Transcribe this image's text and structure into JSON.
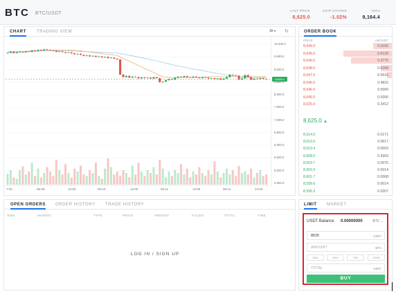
{
  "header": {
    "symbol": "BTC",
    "pair": "BTC/USDT",
    "stats": [
      {
        "label": "LAST PRICE",
        "value": "8,625.0",
        "color": "#e0554b"
      },
      {
        "label": "24HR CHANGE",
        "value": "-1.02%",
        "color": "#e0554b"
      },
      {
        "label": "HIGH",
        "value": "9,164.4",
        "color": "#1d2230"
      }
    ]
  },
  "chart_panel": {
    "tabs": [
      {
        "label": "CHART"
      },
      {
        "label": "TRADING VIEW"
      }
    ],
    "interval": "1h",
    "interval_icon": "chevron-down-icon",
    "refresh_icon": "refresh-icon"
  },
  "chart_data": {
    "type": "candlestick",
    "y_ticks": [
      "10,000.0",
      "9,500.0",
      "9,000.0",
      "8,500.0",
      "8,000.0",
      "7,500.0",
      "7,000.0",
      "6,500.0",
      "6,000.0",
      "5,500.0",
      "5,000.0",
      "4,500.0"
    ],
    "x_ticks": [
      "7:00",
      "06-09",
      "12:00",
      "06-10",
      "12:00",
      "06-11",
      "12:00",
      "06-12",
      "12:00"
    ],
    "last_price_tag": "8,625.0",
    "ylim": [
      4500,
      10000
    ],
    "candles": [
      [
        9640,
        9660
      ],
      [
        9660,
        9700
      ],
      [
        9700,
        9650
      ],
      [
        9650,
        9680
      ],
      [
        9680,
        9700
      ],
      [
        9700,
        9680
      ],
      [
        9680,
        9720
      ],
      [
        9720,
        9700
      ],
      [
        9700,
        9760
      ],
      [
        9760,
        9740
      ],
      [
        9740,
        9780
      ],
      [
        9780,
        9760
      ],
      [
        9760,
        9800
      ],
      [
        9800,
        9780
      ],
      [
        9780,
        9760
      ],
      [
        9760,
        9740
      ],
      [
        9740,
        9700
      ],
      [
        9700,
        9720
      ],
      [
        9720,
        9690
      ],
      [
        9690,
        9660
      ],
      [
        9660,
        9680
      ],
      [
        9680,
        9640
      ],
      [
        9640,
        9600
      ],
      [
        9600,
        9620
      ],
      [
        9620,
        9580
      ],
      [
        9580,
        9540
      ],
      [
        9540,
        9560
      ],
      [
        9560,
        9520
      ],
      [
        9520,
        9540
      ],
      [
        9540,
        9500
      ],
      [
        9500,
        9520
      ],
      [
        9520,
        9480
      ],
      [
        9480,
        9500
      ],
      [
        9500,
        9450
      ],
      [
        9450,
        9470
      ],
      [
        9470,
        9430
      ],
      [
        9430,
        9400
      ],
      [
        9400,
        8800
      ],
      [
        8800,
        8700
      ],
      [
        8700,
        8750
      ],
      [
        8750,
        8680
      ],
      [
        8680,
        8720
      ],
      [
        8720,
        8700
      ],
      [
        8700,
        8650
      ],
      [
        8650,
        8690
      ],
      [
        8690,
        8660
      ],
      [
        8660,
        8680
      ],
      [
        8680,
        8640
      ],
      [
        8640,
        8700
      ],
      [
        8700,
        8660
      ],
      [
        8660,
        8500
      ],
      [
        8500,
        8520
      ],
      [
        8520,
        8580
      ],
      [
        8580,
        8620
      ],
      [
        8620,
        8600
      ],
      [
        8600,
        8680
      ],
      [
        8680,
        8720
      ],
      [
        8720,
        8700
      ],
      [
        8700,
        8740
      ],
      [
        8740,
        8700
      ],
      [
        8700,
        8680
      ],
      [
        8680,
        8720
      ],
      [
        8720,
        8690
      ],
      [
        8690,
        8660
      ],
      [
        8660,
        8700
      ],
      [
        8700,
        8680
      ],
      [
        8680,
        8640
      ],
      [
        8640,
        8660
      ],
      [
        8660,
        8620
      ],
      [
        8620,
        8650
      ],
      [
        8650,
        8600
      ],
      [
        8600,
        8640
      ],
      [
        8640,
        8700
      ],
      [
        8700,
        8800
      ],
      [
        8800,
        8780
      ],
      [
        8780,
        8760
      ],
      [
        8760,
        8600
      ],
      [
        8600,
        8650
      ],
      [
        8650,
        8780
      ],
      [
        8780,
        8700
      ],
      [
        8700,
        8600
      ],
      [
        8600,
        8640
      ],
      [
        8640,
        8620
      ],
      [
        8620,
        8660
      ],
      [
        8660,
        8630
      ],
      [
        8630,
        8625
      ]
    ],
    "volumes": [
      15,
      20,
      10,
      8,
      20,
      25,
      14,
      18,
      30,
      12,
      22,
      10,
      16,
      24,
      18,
      12,
      34,
      20,
      14,
      28,
      16,
      10,
      22,
      18,
      26,
      14,
      12,
      20,
      16,
      30,
      12,
      8,
      22,
      36,
      24,
      14,
      18,
      12,
      20,
      16,
      10,
      26,
      14,
      30,
      18,
      12,
      20,
      16,
      24,
      14,
      34,
      22,
      10,
      18,
      12,
      20,
      16,
      28,
      14,
      22,
      10,
      18,
      14,
      24,
      16,
      12,
      20,
      14,
      32,
      18,
      10,
      16,
      22,
      14,
      20,
      12,
      26,
      16,
      18,
      14,
      22,
      10,
      16,
      20,
      12,
      14
    ]
  },
  "order_book": {
    "tab": "ORDER BOOK",
    "col_price": "PRICE",
    "col_amount": "AMOUNT",
    "asks": [
      {
        "price": "8,649.0",
        "amount": "0.0100",
        "depth": 0.2
      },
      {
        "price": "8,649.0",
        "amount": "0.6129",
        "depth": 0.52
      },
      {
        "price": "8,649.0",
        "amount": "0.3770",
        "depth": 0.44
      },
      {
        "price": "8,648.0",
        "amount": "0.0184",
        "depth": 0.12
      },
      {
        "price": "8,647.0",
        "amount": "0.5516",
        "depth": 0.05
      },
      {
        "price": "8,646.0",
        "amount": "0.4815",
        "depth": 0.0
      },
      {
        "price": "8,646.0",
        "amount": "0.5000",
        "depth": 0.0
      },
      {
        "price": "8,646.0",
        "amount": "0.0056",
        "depth": 0.0
      },
      {
        "price": "8,625.0",
        "amount": "0.3412",
        "depth": 0.0
      }
    ],
    "last_price": "8,625.0",
    "bids": [
      {
        "price": "8,614.0",
        "amount": "0.0171"
      },
      {
        "price": "8,613.0",
        "amount": "0.0617"
      },
      {
        "price": "8,613.4",
        "amount": "0.0053"
      },
      {
        "price": "8,608.0",
        "amount": "0.4303"
      },
      {
        "price": "8,603.7",
        "amount": "0.0075"
      },
      {
        "price": "8,602.0",
        "amount": "0.0014"
      },
      {
        "price": "8,601.7",
        "amount": "0.0068"
      },
      {
        "price": "8,599.6",
        "amount": "0.0014"
      },
      {
        "price": "8,595.3",
        "amount": "0.0207"
      }
    ]
  },
  "orders_panel": {
    "tabs": [
      {
        "label": "OPEN ORDERS"
      },
      {
        "label": "ORDER HISTORY"
      },
      {
        "label": "TRADE HISTORY"
      }
    ],
    "columns": [
      "SIDE",
      "MARKET",
      "TYPE",
      "PRICE",
      "AMOUNT",
      "FILLED",
      "TOTAL",
      "TIME"
    ],
    "login_text": "LOG IN  /  SIGN UP"
  },
  "trade_panel": {
    "tabs": [
      {
        "label": "LIMIT"
      },
      {
        "label": "MARKET"
      }
    ],
    "balance_label": "USDT Balance",
    "balance_value": "0.00000000",
    "balance_currency": "BTC",
    "price_value": "8625",
    "price_unit": "USDT",
    "amount_placeholder": "AMOUNT",
    "amount_unit": "BTC",
    "percents": [
      "25%",
      "50%",
      "75%",
      "100%"
    ],
    "total_placeholder": "TOTAL",
    "total_unit": "USDT",
    "buy_label": "BUY"
  }
}
